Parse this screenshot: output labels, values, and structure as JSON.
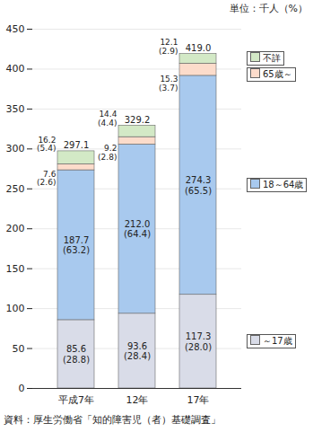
{
  "chart_data": {
    "type": "bar",
    "stacked": true,
    "data_labels": true,
    "grid": true,
    "legend": "right",
    "subtitle": "単位：千人（%）",
    "caption": "資料：厚生労働省「知的障害児（者）基礎調査」",
    "categories": [
      "平成7年",
      "12年",
      "17年"
    ],
    "series": [
      {
        "name": "～17歳",
        "color": "#d9dce8",
        "values": [
          85.6,
          93.6,
          117.3
        ],
        "value_labels": [
          "85.6\n(28.8)",
          "93.6\n(28.4)",
          "117.3\n(28.0)"
        ]
      },
      {
        "name": "18～64歳",
        "color": "#a8c9ee",
        "values": [
          187.7,
          212.0,
          274.3
        ],
        "value_labels": [
          "187.7\n(63.2)",
          "212.0\n(64.4)",
          "274.3\n(65.5)"
        ]
      },
      {
        "name": "65歳～",
        "color": "#fcdccb",
        "values": [
          7.6,
          9.2,
          15.3
        ],
        "value_labels": [
          "7.6\n(2.6)",
          "9.2\n(2.8)",
          "15.3\n(3.7)"
        ]
      },
      {
        "name": "不詳",
        "color": "#d3e9c6",
        "values": [
          16.2,
          14.4,
          12.1
        ],
        "value_labels": [
          "16.2\n(5.4)",
          "14.4\n(4.4)",
          "12.1\n(2.9)"
        ]
      }
    ],
    "totals": [
      297.1,
      329.2,
      419.0
    ],
    "total_labels": [
      "297.1",
      "329.2",
      "419.0"
    ],
    "ylim": [
      0,
      450
    ],
    "yticks": [
      0,
      50,
      100,
      150,
      200,
      250,
      300,
      350,
      400,
      450
    ]
  }
}
